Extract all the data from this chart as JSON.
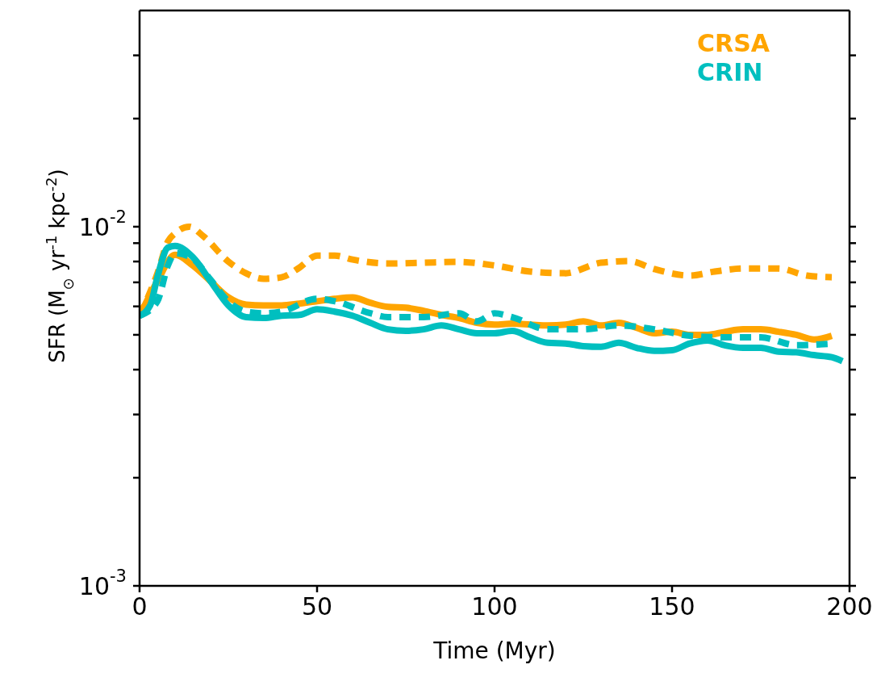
{
  "chart_data": {
    "type": "line",
    "xlabel": "Time (Myr)",
    "ylabel": "SFR (M$_{⊙}$ yr$^{-1}$ kpc$^{-2}$)",
    "xlim": [
      0,
      200
    ],
    "xticks": [
      0,
      50,
      100,
      150,
      200
    ],
    "ylim": [
      0.001,
      0.04
    ],
    "log": "y",
    "yticks": [
      {
        "value": 0.001,
        "label": "10$^{-3}$"
      },
      {
        "value": 0.002,
        "label": null
      },
      {
        "value": 0.003,
        "label": null
      },
      {
        "value": 0.004,
        "label": null
      },
      {
        "value": 0.005,
        "label": null
      },
      {
        "value": 0.006,
        "label": null
      },
      {
        "value": 0.007,
        "label": null
      },
      {
        "value": 0.008,
        "label": null
      },
      {
        "value": 0.009,
        "label": null
      },
      {
        "value": 0.01,
        "label": "10$^{-2}$"
      },
      {
        "value": 0.02,
        "label": null
      },
      {
        "value": 0.03,
        "label": null
      }
    ],
    "grid": false,
    "legend": "top right",
    "marker": "none",
    "series": [
      {
        "name": "CRSA",
        "color": "#ffa500",
        "line_style": "solid",
        "x": [
          0,
          5,
          10,
          15,
          20,
          25,
          30,
          35,
          40,
          45,
          50,
          55,
          60,
          65,
          70,
          75,
          80,
          85,
          90,
          95,
          100,
          105,
          110,
          115,
          120,
          125,
          130,
          135,
          140,
          145,
          150,
          155,
          160,
          165,
          170,
          175,
          180,
          185,
          190,
          195
        ],
        "values": [
          0.00565,
          0.00705,
          0.00835,
          0.0078,
          0.00705,
          0.00636,
          0.00607,
          0.00604,
          0.00604,
          0.00611,
          0.0062,
          0.0063,
          0.00636,
          0.00614,
          0.00598,
          0.00595,
          0.00583,
          0.00568,
          0.00557,
          0.0054,
          0.00534,
          0.00537,
          0.00534,
          0.00531,
          0.00534,
          0.00545,
          0.00531,
          0.0054,
          0.00523,
          0.00505,
          0.0051,
          0.005,
          0.005,
          0.0051,
          0.00518,
          0.00518,
          0.0051,
          0.005,
          0.00485,
          0.00497
        ]
      },
      {
        "color": "#ffa500",
        "line_style": "dashed",
        "x": [
          0,
          5,
          8,
          10,
          14,
          18,
          25,
          30,
          35,
          40,
          45,
          50,
          55,
          60,
          70,
          80,
          90,
          100,
          110,
          120,
          130,
          138,
          145,
          155,
          162,
          170,
          180,
          188,
          195
        ],
        "values": [
          0.00565,
          0.0074,
          0.0091,
          0.00959,
          0.01,
          0.0094,
          0.008,
          0.00742,
          0.00716,
          0.00723,
          0.00769,
          0.00831,
          0.00831,
          0.0081,
          0.0079,
          0.00794,
          0.00798,
          0.0078,
          0.0075,
          0.00742,
          0.00794,
          0.00802,
          0.00762,
          0.00731,
          0.0075,
          0.00765,
          0.00765,
          0.00731,
          0.00723
        ]
      },
      {
        "name": "CRIN",
        "color": "#00bfbf",
        "line_style": "solid",
        "x": [
          0,
          3,
          5,
          8,
          10,
          15,
          20,
          25,
          30,
          35,
          40,
          45,
          50,
          55,
          60,
          65,
          70,
          75,
          80,
          85,
          90,
          95,
          100,
          105,
          110,
          115,
          120,
          125,
          130,
          135,
          140,
          145,
          150,
          155,
          160,
          165,
          170,
          175,
          180,
          185,
          190,
          195,
          198
        ],
        "values": [
          0.00565,
          0.00604,
          0.00723,
          0.00875,
          0.00884,
          0.00823,
          0.00705,
          0.00604,
          0.0056,
          0.00557,
          0.00565,
          0.00568,
          0.00589,
          0.0058,
          0.00565,
          0.0054,
          0.00518,
          0.00513,
          0.00518,
          0.00531,
          0.00518,
          0.00505,
          0.00505,
          0.00513,
          0.00492,
          0.00475,
          0.00473,
          0.00465,
          0.00463,
          0.00475,
          0.0046,
          0.00451,
          0.00453,
          0.00473,
          0.00482,
          0.00467,
          0.0046,
          0.0046,
          0.00449,
          0.00447,
          0.00439,
          0.00433,
          0.00422
        ]
      },
      {
        "color": "#00bfbf",
        "line_style": "dashed",
        "x": [
          0,
          5,
          8,
          10,
          15,
          20,
          25,
          30,
          35,
          40,
          50,
          55,
          65,
          70,
          80,
          90,
          95,
          100,
          105,
          115,
          125,
          135,
          145,
          155,
          165,
          175,
          185,
          195
        ],
        "values": [
          0.00565,
          0.0062,
          0.00781,
          0.00844,
          0.00814,
          0.00712,
          0.0062,
          0.0058,
          0.00574,
          0.0058,
          0.0063,
          0.0062,
          0.00574,
          0.0056,
          0.0056,
          0.00574,
          0.00545,
          0.00574,
          0.0056,
          0.00518,
          0.00518,
          0.00531,
          0.00518,
          0.00497,
          0.00492,
          0.00492,
          0.00468,
          0.00472
        ]
      }
    ]
  }
}
